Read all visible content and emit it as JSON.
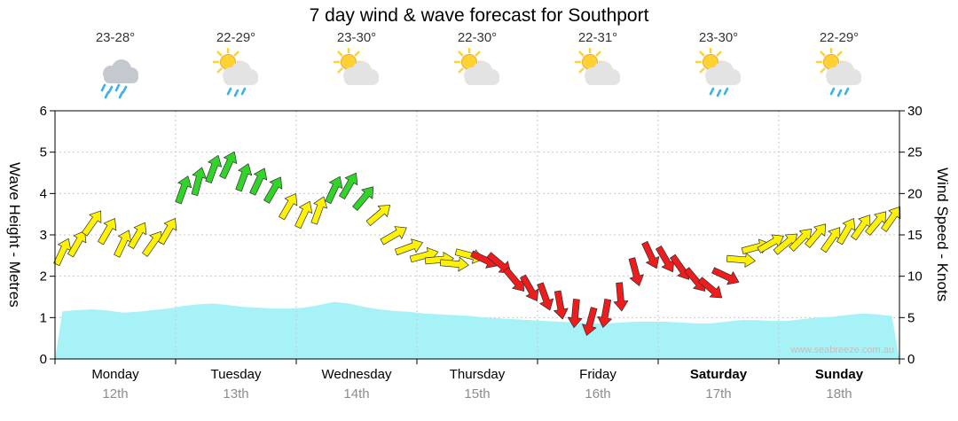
{
  "title": "7 day wind & wave forecast for Southport",
  "watermark": "www.seabreeze.com.au",
  "days": [
    {
      "name": "Monday",
      "date": "12th",
      "temp": "23-28°",
      "icon": "rain-cloud",
      "weekend": false
    },
    {
      "name": "Tuesday",
      "date": "13th",
      "temp": "22-29°",
      "icon": "sun-cloud-rain",
      "weekend": false
    },
    {
      "name": "Wednesday",
      "date": "14th",
      "temp": "23-30°",
      "icon": "sun-cloud",
      "weekend": false
    },
    {
      "name": "Thursday",
      "date": "15th",
      "temp": "22-30°",
      "icon": "sun-cloud",
      "weekend": false
    },
    {
      "name": "Friday",
      "date": "16th",
      "temp": "22-31°",
      "icon": "sun-cloud",
      "weekend": false
    },
    {
      "name": "Saturday",
      "date": "17th",
      "temp": "23-30°",
      "icon": "sun-cloud-rain",
      "weekend": true
    },
    {
      "name": "Sunday",
      "date": "18th",
      "temp": "22-29°",
      "icon": "sun-cloud-rain",
      "weekend": true
    }
  ],
  "colors": {
    "wind_yellow": "#FFF200",
    "wind_green": "#33D42A",
    "wind_red": "#EE1C1C",
    "arrow_outline": "#303030",
    "wave_fill": "#A6F2F7",
    "grid": "#C9C9C9",
    "axis": "#000000",
    "date_gray": "#8C8C8C",
    "watermark_gray": "#C0C0C0",
    "sun": "#FFD233",
    "sun_outline": "#EBA93B",
    "cloud": "#E3E3E3",
    "cloud_dark": "#C4C9D0",
    "rain": "#3FB0E8"
  },
  "chart_data": {
    "type": "area",
    "title": "7 day wind & wave forecast for Southport",
    "left_axis": {
      "label": "Wave Height - Metres",
      "range": [
        0,
        6
      ],
      "ticks": [
        0,
        1,
        2,
        3,
        4,
        5,
        6
      ]
    },
    "right_axis": {
      "label": "Wind Speed - Knots",
      "range": [
        0,
        30
      ],
      "ticks": [
        0,
        5,
        10,
        15,
        20,
        25,
        30
      ]
    },
    "x_axis": {
      "categories": [
        "Monday 12th",
        "Tuesday 13th",
        "Wednesday 14th",
        "Thursday 15th",
        "Friday 16th",
        "Saturday 17th",
        "Sunday 18th"
      ],
      "points_per_day": 8,
      "grid_day_boundaries": true
    },
    "series": [
      {
        "name": "Wave Height",
        "unit": "m",
        "render": "area",
        "axis": "left",
        "values": [
          1.15,
          1.18,
          1.2,
          1.17,
          1.12,
          1.14,
          1.18,
          1.22,
          1.28,
          1.32,
          1.34,
          1.3,
          1.26,
          1.24,
          1.22,
          1.22,
          1.24,
          1.3,
          1.38,
          1.34,
          1.26,
          1.2,
          1.16,
          1.14,
          1.1,
          1.08,
          1.06,
          1.04,
          1.0,
          0.98,
          0.96,
          0.94,
          0.92,
          0.9,
          0.88,
          0.86,
          0.86,
          0.88,
          0.9,
          0.9,
          0.9,
          0.88,
          0.86,
          0.86,
          0.9,
          0.94,
          0.94,
          0.92,
          0.92,
          0.96,
          1.0,
          1.02,
          1.06,
          1.1,
          1.08,
          1.04
        ]
      },
      {
        "name": "Wind Speed",
        "unit": "knots",
        "render": "wind-arrows",
        "axis": "right",
        "values": [
          13,
          14,
          16.5,
          15.5,
          14,
          15,
          14,
          15.5,
          20.5,
          21.5,
          23,
          23.5,
          22,
          21.5,
          20.5,
          18.5,
          17.5,
          18,
          20.5,
          21,
          19.5,
          17.5,
          15,
          13.5,
          12.5,
          12,
          11.5,
          12.5,
          12,
          11.5,
          9.5,
          8.5,
          7.5,
          6.5,
          5.5,
          4.5,
          5.5,
          7.5,
          10.5,
          12.5,
          12,
          11,
          9.5,
          8.5,
          10,
          12,
          13.5,
          14,
          14,
          14.5,
          15,
          14.5,
          15.5,
          16,
          16.5,
          17
        ],
        "directions_deg": [
          25,
          30,
          35,
          30,
          25,
          30,
          35,
          30,
          20,
          15,
          20,
          25,
          20,
          25,
          30,
          30,
          25,
          20,
          25,
          30,
          40,
          50,
          60,
          70,
          75,
          85,
          95,
          105,
          115,
          130,
          140,
          150,
          160,
          170,
          185,
          195,
          190,
          175,
          165,
          155,
          150,
          145,
          140,
          130,
          115,
          95,
          75,
          60,
          50,
          45,
          40,
          35,
          30,
          35,
          40,
          35
        ],
        "speed_colors": [
          "yellow",
          "yellow",
          "yellow",
          "yellow",
          "yellow",
          "yellow",
          "yellow",
          "yellow",
          "green",
          "green",
          "green",
          "green",
          "green",
          "green",
          "green",
          "yellow",
          "yellow",
          "yellow",
          "green",
          "green",
          "green",
          "yellow",
          "yellow",
          "yellow",
          "yellow",
          "yellow",
          "yellow",
          "yellow",
          "red",
          "red",
          "red",
          "red",
          "red",
          "red",
          "red",
          "red",
          "red",
          "red",
          "red",
          "red",
          "red",
          "red",
          "red",
          "red",
          "red",
          "yellow",
          "yellow",
          "yellow",
          "yellow",
          "yellow",
          "yellow",
          "yellow",
          "yellow",
          "yellow",
          "yellow",
          "yellow"
        ]
      }
    ]
  }
}
